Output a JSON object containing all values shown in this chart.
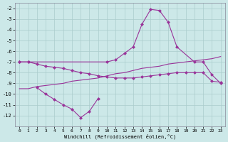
{
  "xlabel": "Windchill (Refroidissement éolien,°C)",
  "bg_color": "#cce8e8",
  "grid_color": "#aacccc",
  "line_color": "#993399",
  "xlim": [
    -0.5,
    23.5
  ],
  "ylim": [
    -13,
    -1.5
  ],
  "xticks": [
    0,
    1,
    2,
    3,
    4,
    5,
    6,
    7,
    8,
    9,
    10,
    11,
    12,
    13,
    14,
    15,
    16,
    17,
    18,
    19,
    20,
    21,
    22,
    23
  ],
  "yticks": [
    -2,
    -3,
    -4,
    -5,
    -6,
    -7,
    -8,
    -9,
    -10,
    -11,
    -12
  ],
  "lineA_x": [
    0,
    1,
    10,
    11,
    12,
    13,
    14,
    15,
    16,
    17,
    18,
    20,
    21,
    22,
    23
  ],
  "lineA_y": [
    -7.0,
    -7.0,
    -7.0,
    -6.8,
    -6.2,
    -5.6,
    -3.5,
    -2.1,
    -2.2,
    -3.3,
    -5.6,
    -7.0,
    -7.0,
    -8.2,
    -9.0
  ],
  "lineB_x": [
    0,
    1,
    2,
    3,
    4,
    5,
    6,
    7,
    8,
    9,
    10,
    11,
    12,
    13,
    14,
    15,
    16,
    17,
    18,
    19,
    20,
    21,
    22,
    23
  ],
  "lineB_y": [
    -9.5,
    -9.5,
    -9.3,
    -9.2,
    -9.1,
    -9.0,
    -8.8,
    -8.7,
    -8.6,
    -8.5,
    -8.3,
    -8.1,
    -8.0,
    -7.8,
    -7.6,
    -7.5,
    -7.4,
    -7.2,
    -7.1,
    -7.0,
    -6.9,
    -6.8,
    -6.7,
    -6.5
  ],
  "lineC_x": [
    0,
    1,
    2,
    3,
    4,
    5,
    6,
    7,
    8,
    9,
    10,
    11,
    12,
    13,
    14,
    15,
    16,
    17,
    18,
    19,
    20,
    21,
    22,
    23
  ],
  "lineC_y": [
    -7.0,
    -7.0,
    -7.2,
    -7.4,
    -7.5,
    -7.6,
    -7.8,
    -8.0,
    -8.1,
    -8.3,
    -8.4,
    -8.5,
    -8.5,
    -8.5,
    -8.4,
    -8.3,
    -8.2,
    -8.1,
    -8.0,
    -8.0,
    -8.0,
    -8.0,
    -8.8,
    -8.9
  ],
  "lineD_x": [
    2,
    3,
    4,
    5,
    6,
    7,
    8,
    9
  ],
  "lineD_y": [
    -9.4,
    -10.0,
    -10.5,
    -11.0,
    -11.4,
    -12.2,
    -11.6,
    -10.4
  ]
}
